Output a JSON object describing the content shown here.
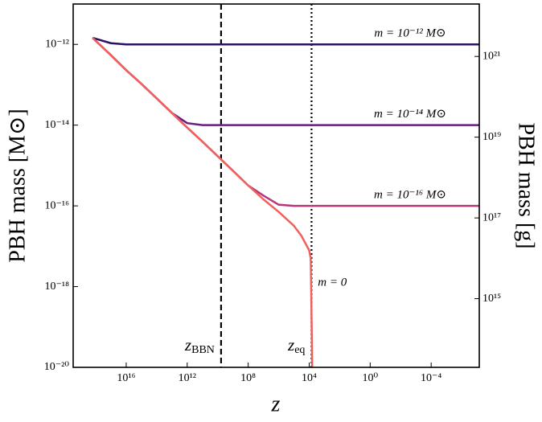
{
  "chart_data": {
    "type": "line",
    "xlabel": "z",
    "ylabel": "PBH mass [M⊙]",
    "y2label": "PBH mass [g]",
    "xscale": "log",
    "yscale": "log",
    "y2scale": "log",
    "xlim": [
      3e+19,
      7e-08
    ],
    "ylim": [
      1e-20,
      1e-11
    ],
    "y2lim": [
      19890000000000.0,
      1.989e+22
    ],
    "xticks": [
      {
        "value": 1e+16,
        "label": "10¹⁶"
      },
      {
        "value": 1000000000000.0,
        "label": "10¹²"
      },
      {
        "value": 100000000.0,
        "label": "10⁸"
      },
      {
        "value": 10000.0,
        "label": "10⁴"
      },
      {
        "value": 1,
        "label": "10⁰"
      },
      {
        "value": 0.0001,
        "label": "10⁻⁴"
      }
    ],
    "yticks": [
      {
        "value": 1e-12,
        "label": "10⁻¹²"
      },
      {
        "value": 1e-14,
        "label": "10⁻¹⁴"
      },
      {
        "value": 1e-16,
        "label": "10⁻¹⁶"
      },
      {
        "value": 1e-18,
        "label": "10⁻¹⁸"
      },
      {
        "value": 1e-20,
        "label": "10⁻²⁰"
      }
    ],
    "y2ticks": [
      {
        "value": 1e+21,
        "label": "10²¹"
      },
      {
        "value": 1e+19,
        "label": "10¹⁹"
      },
      {
        "value": 1e+17,
        "label": "10¹⁷"
      },
      {
        "value": 1000000000000000.0,
        "label": "10¹⁵"
      }
    ],
    "x": [
      1.6e+18,
      1e+17,
      1e+16,
      1000000000000000.0,
      100000000000000.0,
      10000000000000.0,
      1000000000000.0,
      100000000000.0,
      10000000000.0,
      1000000000.0,
      100000000.0,
      10000000.0,
      1000000.0,
      100000.0,
      32000.0,
      10000.0,
      7900.0,
      6300.0,
      1000.0,
      1,
      0.0001,
      7e-08
    ],
    "series": [
      {
        "name": "m = 10⁻¹² M⊙",
        "color": "#2c1160",
        "values": [
          1.45e-12,
          1.07e-12,
          1e-12,
          1e-12,
          1e-12,
          1e-12,
          1e-12,
          1e-12,
          1e-12,
          1e-12,
          1e-12,
          1e-12,
          1e-12,
          1e-12,
          1e-12,
          1e-12,
          1e-12,
          1e-12,
          1e-12,
          1e-12,
          1e-12,
          1e-12
        ]
      },
      {
        "name": "m = 10⁻¹⁴ M⊙",
        "color": "#6a1c81",
        "values": [
          1.45e-12,
          5.4e-13,
          2.3e-13,
          1.05e-13,
          4.6e-14,
          2e-14,
          1.12e-14,
          1e-14,
          1e-14,
          1e-14,
          1e-14,
          1e-14,
          1e-14,
          1e-14,
          1e-14,
          1e-14,
          1e-14,
          1e-14,
          1e-14,
          1e-14,
          1e-14,
          1e-14
        ]
      },
      {
        "name": "m = 10⁻¹⁶ M⊙",
        "color": "#b5367a",
        "values": [
          1.45e-12,
          5.4e-13,
          2.3e-13,
          1.05e-13,
          4.6e-14,
          2e-14,
          8.7e-15,
          3.9e-15,
          1.7e-15,
          7.4e-16,
          3.2e-16,
          1.8e-16,
          1.07e-16,
          1e-16,
          1e-16,
          1e-16,
          1e-16,
          1e-16,
          1e-16,
          1e-16,
          1e-16,
          1e-16
        ]
      },
      {
        "name": "m = 0",
        "color": "#f0605d",
        "values": [
          1.45e-12,
          5.4e-13,
          2.3e-13,
          1.05e-13,
          4.6e-14,
          2e-14,
          8.7e-15,
          3.9e-15,
          1.7e-15,
          7.4e-16,
          3.2e-16,
          1.45e-16,
          7.1e-17,
          3.2e-17,
          1.8e-17,
          7.9e-18,
          5e-18,
          1e-20,
          null,
          null,
          null,
          null
        ]
      }
    ],
    "vlines": [
      {
        "value": 6000000000.0,
        "style": "dashed",
        "label": {
          "text": "z",
          "sub": "BBN"
        }
      },
      {
        "value": 7000.0,
        "style": "dotted",
        "label": {
          "text": "z",
          "sub": "eq"
        }
      }
    ]
  }
}
